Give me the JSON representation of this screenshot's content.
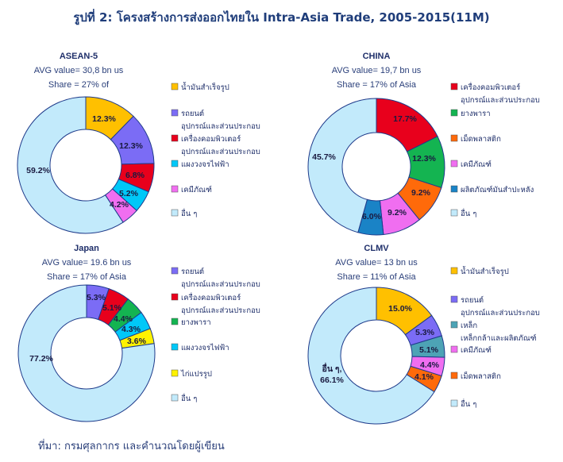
{
  "title": "รูปที่ 2: โครงสร้างการส่งออกไทยใน Intra-Asia Trade, 2005-2015(11M)",
  "source": "ที่มา: กรมศุลกากร และคำนวณโดยผู้เขียน",
  "colors": {
    "yellow": "#FFC000",
    "purple": "#7B6CF5",
    "red": "#E8001C",
    "cyan": "#00C8F8",
    "magenta": "#F06EF0",
    "lightblue": "#C2EAFB",
    "green": "#14B451",
    "orange": "#FF6A0A",
    "steelblue": "#1A83C6",
    "teal": "#4DA3B5",
    "yellow2": "#FFF200"
  },
  "chart_data": [
    {
      "type": "pie",
      "title": "ASEAN-5",
      "subtitle_1": "AVG value= 30,8 bn us",
      "subtitle_2": "Share = 27% of",
      "slices": [
        {
          "label": "น้ำมันสำเร็จรูป",
          "value": 12.3,
          "display": "12.3%",
          "color": "#FFC000"
        },
        {
          "label": "รถยนต์ อุปกรณ์และส่วนประกอบ",
          "value": 12.3,
          "display": "12.3%",
          "color": "#7B6CF5"
        },
        {
          "label": "เครื่องคอมพิวเตอร์ อุปกรณ์และส่วนประกอบ",
          "value": 6.8,
          "display": "6.8%",
          "color": "#E8001C"
        },
        {
          "label": "แผงวงจรไฟฟ้า",
          "value": 5.2,
          "display": "5.2%",
          "color": "#00C8F8"
        },
        {
          "label": "เคมีภัณฑ์",
          "value": 4.2,
          "display": "4.2%",
          "color": "#F06EF0"
        },
        {
          "label": "อื่น ๆ",
          "value": 59.2,
          "display": "59.2%",
          "color": "#C2EAFB"
        }
      ]
    },
    {
      "type": "pie",
      "title": "CHINA",
      "subtitle_1": "AVG value= 19,7 bn us",
      "subtitle_2": "Share = 17% of Asia",
      "slices": [
        {
          "label": "เครื่องคอมพิวเตอร์ อุปกรณ์และส่วนประกอบ",
          "value": 17.7,
          "display": "17.7%",
          "color": "#E8001C"
        },
        {
          "label": "ยางพารา",
          "value": 12.3,
          "display": "12.3%",
          "color": "#14B451"
        },
        {
          "label": "เม็ดพลาสติก",
          "value": 9.2,
          "display": "9.2%",
          "color": "#FF6A0A"
        },
        {
          "label": "เคมีภัณฑ์",
          "value": 9.2,
          "display": "9.2%",
          "color": "#F06EF0"
        },
        {
          "label": "ผลิตภัณฑ์มันสำปะหลัง",
          "value": 6.0,
          "display": "6.0%",
          "color": "#1A83C6"
        },
        {
          "label": "อื่น ๆ",
          "value": 45.7,
          "display": "45.7%",
          "color": "#C2EAFB"
        }
      ]
    },
    {
      "type": "pie",
      "title": "Japan",
      "subtitle_1": "AVG value= 19.6  bn us",
      "subtitle_2": "Share = 17% of Asia",
      "slices": [
        {
          "label": "รถยนต์ อุปกรณ์และส่วนประกอบ",
          "value": 5.3,
          "display": "5.3%",
          "color": "#7B6CF5"
        },
        {
          "label": "เครื่องคอมพิวเตอร์ อุปกรณ์และส่วนประกอบ",
          "value": 5.1,
          "display": "5.1%",
          "color": "#E8001C"
        },
        {
          "label": "ยางพารา",
          "value": 4.4,
          "display": "4.4%",
          "color": "#14B451"
        },
        {
          "label": "แผงวงจรไฟฟ้า",
          "value": 4.3,
          "display": "4.3%",
          "color": "#00C8F8"
        },
        {
          "label": "ไก่แปรรูป",
          "value": 3.6,
          "display": "3.6%",
          "color": "#FFF200"
        },
        {
          "label": "อื่น ๆ",
          "value": 77.2,
          "display": "77.2%",
          "color": "#C2EAFB"
        }
      ]
    },
    {
      "type": "pie",
      "title": "CLMV",
      "subtitle_1": "AVG value= 13 bn us",
      "subtitle_2": "Share = 11% of Asia",
      "slices": [
        {
          "label": "น้ำมันสำเร็จรูป",
          "value": 15.0,
          "display": "15.0%",
          "color": "#FFC000"
        },
        {
          "label": "รถยนต์ อุปกรณ์และส่วนประกอบ",
          "value": 5.3,
          "display": "5.3%",
          "color": "#7B6CF5"
        },
        {
          "label": "เหล็ก เหล็กกล้าและผลิตภัณฑ์",
          "value": 5.1,
          "display": "5.1%",
          "color": "#4DA3B5"
        },
        {
          "label": "เคมีภัณฑ์",
          "value": 4.4,
          "display": "4.4%",
          "color": "#F06EF0"
        },
        {
          "label": "เม็ดพลาสติก",
          "value": 4.1,
          "display": "4.1%",
          "color": "#FF6A0A"
        },
        {
          "label": "อื่น ๆ",
          "value": 66.1,
          "display": "อื่น ๆ,\n66.1%",
          "color": "#C2EAFB"
        }
      ]
    }
  ]
}
